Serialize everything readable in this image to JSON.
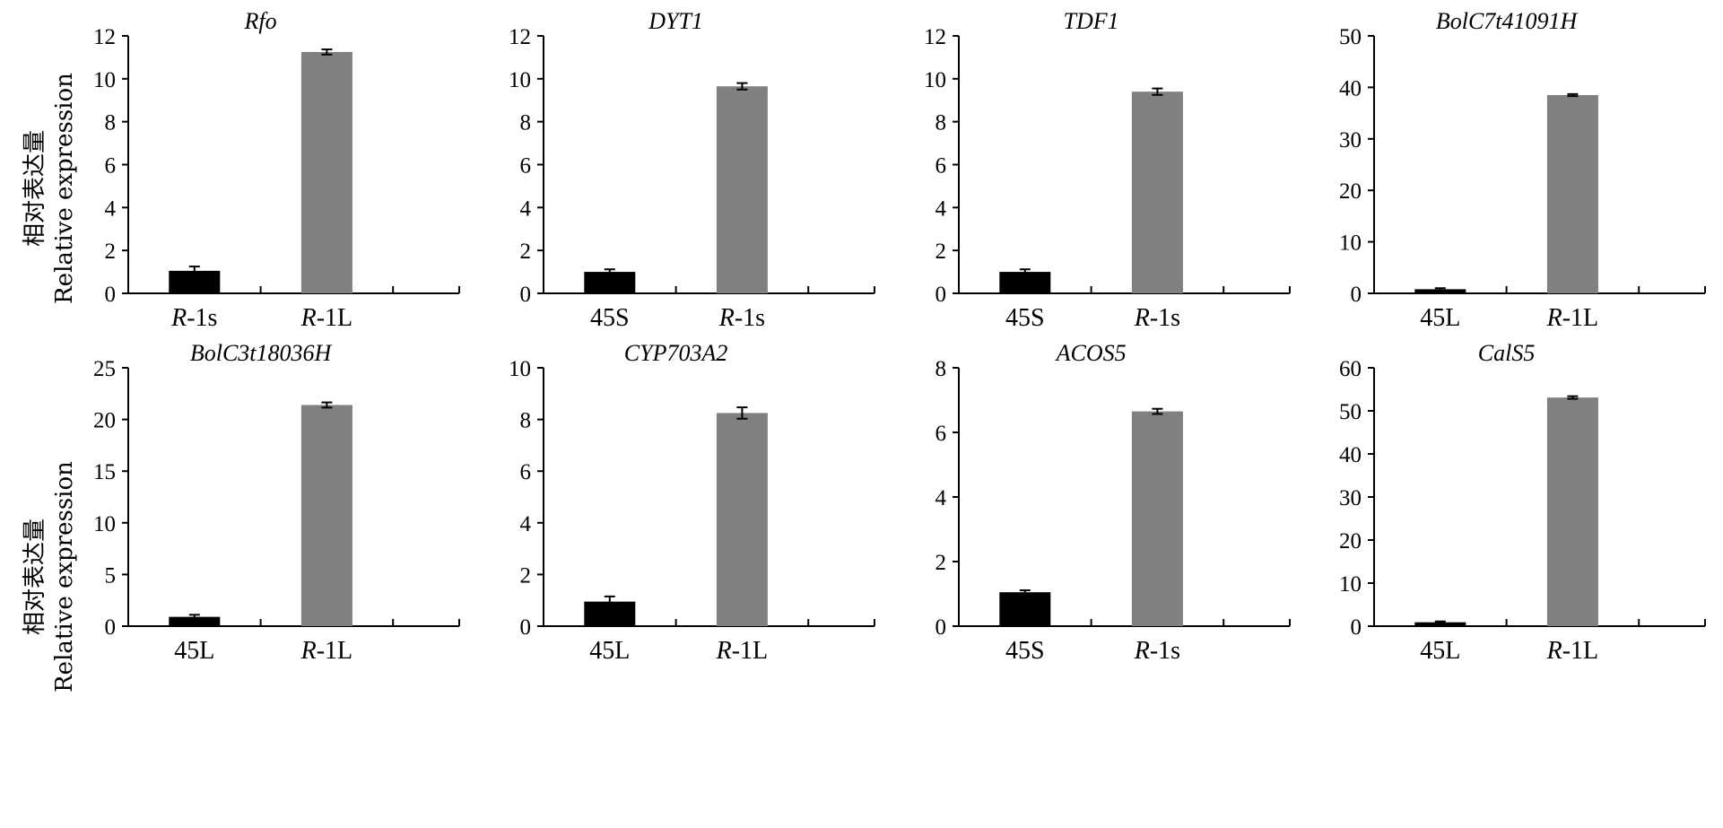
{
  "y_axis_label": {
    "cn": "相对表达量",
    "en": "Relative expression"
  },
  "colors": {
    "bar_first": "#000000",
    "bar_second": "#808080",
    "axis": "#000000"
  },
  "chart_data": [
    {
      "type": "bar",
      "title": "Rfo",
      "categories": [
        [
          "R",
          "-1s"
        ],
        [
          "R",
          "-1L"
        ]
      ],
      "values": [
        1.05,
        11.25
      ],
      "errors": [
        0.2,
        0.12
      ],
      "ylim": [
        0,
        12
      ],
      "yticks": [
        0,
        2,
        4,
        6,
        8,
        10,
        12
      ]
    },
    {
      "type": "bar",
      "title": "DYT1",
      "categories": [
        [
          "",
          "45S"
        ],
        [
          "R",
          "-1s"
        ]
      ],
      "values": [
        1.0,
        9.65
      ],
      "errors": [
        0.12,
        0.15
      ],
      "ylim": [
        0,
        12
      ],
      "yticks": [
        0,
        2,
        4,
        6,
        8,
        10,
        12
      ]
    },
    {
      "type": "bar",
      "title": "TDF1",
      "categories": [
        [
          "",
          "45S"
        ],
        [
          "R",
          "-1s"
        ]
      ],
      "values": [
        1.0,
        9.4
      ],
      "errors": [
        0.12,
        0.15
      ],
      "ylim": [
        0,
        12
      ],
      "yticks": [
        0,
        2,
        4,
        6,
        8,
        10,
        12
      ]
    },
    {
      "type": "bar",
      "title": "BolC7t41091H",
      "categories": [
        [
          "",
          "45L"
        ],
        [
          "R",
          "-1L"
        ]
      ],
      "values": [
        0.8,
        38.5
      ],
      "errors": [
        0.2,
        0.2
      ],
      "ylim": [
        0,
        50
      ],
      "yticks": [
        0,
        10,
        20,
        30,
        40,
        50
      ]
    },
    {
      "type": "bar",
      "title": "BolC3t18036H",
      "categories": [
        [
          "",
          "45L"
        ],
        [
          "R",
          "-1L"
        ]
      ],
      "values": [
        0.9,
        21.4
      ],
      "errors": [
        0.2,
        0.25
      ],
      "ylim": [
        0,
        25
      ],
      "yticks": [
        0,
        5,
        10,
        15,
        20,
        25
      ]
    },
    {
      "type": "bar",
      "title": "CYP703A2",
      "categories": [
        [
          "",
          "45L"
        ],
        [
          "R",
          "-1L"
        ]
      ],
      "values": [
        0.95,
        8.25
      ],
      "errors": [
        0.2,
        0.22
      ],
      "ylim": [
        0,
        10
      ],
      "yticks": [
        0,
        2,
        4,
        6,
        8,
        10
      ]
    },
    {
      "type": "bar",
      "title": "ACOS5",
      "categories": [
        [
          "",
          "45S"
        ],
        [
          "R",
          "-1s"
        ]
      ],
      "values": [
        1.05,
        6.65
      ],
      "errors": [
        0.06,
        0.08
      ],
      "ylim": [
        0,
        8
      ],
      "yticks": [
        0,
        2,
        4,
        6,
        8
      ]
    },
    {
      "type": "bar",
      "title": "CalS5",
      "categories": [
        [
          "",
          "45L"
        ],
        [
          "R",
          "-1L"
        ]
      ],
      "values": [
        0.9,
        53.1
      ],
      "errors": [
        0.2,
        0.3
      ],
      "ylim": [
        0,
        60
      ],
      "yticks": [
        0,
        10,
        20,
        30,
        40,
        50,
        60
      ]
    }
  ]
}
